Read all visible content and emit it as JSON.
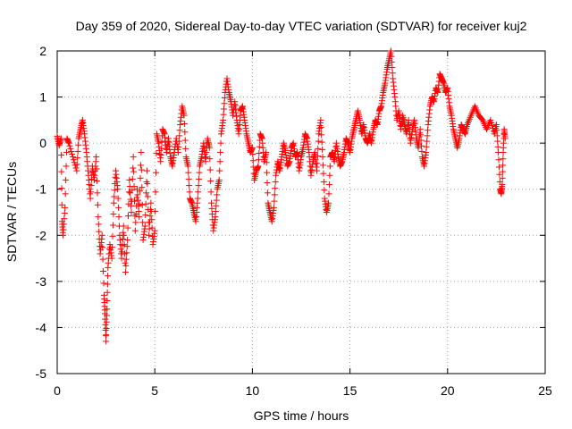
{
  "chart_data": {
    "type": "scatter",
    "title": "Day 359 of 2020, Sidereal Day-to-day VTEC variation (SDTVAR) for receiver kuj2",
    "xlabel": "GPS time / hours",
    "ylabel": "SDTVAR / TECUs",
    "xlim": [
      0,
      25
    ],
    "ylim": [
      -5,
      2
    ],
    "xticks": [
      0,
      5,
      10,
      15,
      20,
      25
    ],
    "yticks": [
      -5,
      -4,
      -3,
      -2,
      -1,
      0,
      1,
      2
    ],
    "grid": true,
    "marker": "+",
    "color": "#ff0000",
    "series": [
      {
        "name": "kuj2",
        "points": [
          [
            0.0,
            0.15
          ],
          [
            0.1,
            -0.05
          ],
          [
            0.2,
            0.1
          ],
          [
            0.25,
            -1.7
          ],
          [
            0.3,
            -2.0
          ],
          [
            0.4,
            -1.4
          ],
          [
            0.5,
            0.1
          ],
          [
            0.6,
            0.0
          ],
          [
            0.8,
            -0.3
          ],
          [
            1.0,
            -0.6
          ],
          [
            1.1,
            0.1
          ],
          [
            1.2,
            0.3
          ],
          [
            1.3,
            0.5
          ],
          [
            1.4,
            0.2
          ],
          [
            1.5,
            -0.2
          ],
          [
            1.6,
            -0.7
          ],
          [
            1.7,
            -1.2
          ],
          [
            1.8,
            -0.5
          ],
          [
            1.9,
            -0.8
          ],
          [
            2.0,
            -0.3
          ],
          [
            2.1,
            -1.6
          ],
          [
            2.2,
            -2.4
          ],
          [
            2.3,
            -2.0
          ],
          [
            2.4,
            -3.3
          ],
          [
            2.45,
            -3.7
          ],
          [
            2.5,
            -4.3
          ],
          [
            2.55,
            -3.6
          ],
          [
            2.6,
            -2.7
          ],
          [
            2.7,
            -2.2
          ],
          [
            2.8,
            -2.5
          ],
          [
            2.9,
            -1.3
          ],
          [
            3.0,
            -0.6
          ],
          [
            3.1,
            -1.0
          ],
          [
            3.2,
            -2.0
          ],
          [
            3.3,
            -2.5
          ],
          [
            3.4,
            -1.8
          ],
          [
            3.5,
            -2.8
          ],
          [
            3.6,
            -2.1
          ],
          [
            3.7,
            -0.8
          ],
          [
            3.8,
            -1.5
          ],
          [
            3.9,
            -0.3
          ],
          [
            4.0,
            -1.9
          ],
          [
            4.1,
            -1.0
          ],
          [
            4.2,
            -1.6
          ],
          [
            4.3,
            -0.2
          ],
          [
            4.4,
            -2.1
          ],
          [
            4.5,
            -1.8
          ],
          [
            4.6,
            -0.6
          ],
          [
            4.7,
            -2.0
          ],
          [
            4.8,
            -1.3
          ],
          [
            4.9,
            -2.2
          ],
          [
            5.0,
            -1.9
          ],
          [
            5.1,
            0.2
          ],
          [
            5.2,
            0.0
          ],
          [
            5.3,
            -0.4
          ],
          [
            5.4,
            0.3
          ],
          [
            5.5,
            0.2
          ],
          [
            5.6,
            -0.2
          ],
          [
            5.7,
            0.1
          ],
          [
            5.8,
            -0.3
          ],
          [
            5.9,
            -0.5
          ],
          [
            6.0,
            -0.2
          ],
          [
            6.1,
            0.1
          ],
          [
            6.2,
            -0.2
          ],
          [
            6.3,
            0.4
          ],
          [
            6.4,
            0.8
          ],
          [
            6.5,
            0.6
          ],
          [
            6.6,
            -0.3
          ],
          [
            6.7,
            -0.5
          ],
          [
            6.8,
            -1.2
          ],
          [
            6.9,
            -1.3
          ],
          [
            7.0,
            -1.5
          ],
          [
            7.1,
            -1.7
          ],
          [
            7.2,
            -1.2
          ],
          [
            7.3,
            -0.5
          ],
          [
            7.4,
            -0.3
          ],
          [
            7.5,
            0.0
          ],
          [
            7.6,
            -0.4
          ],
          [
            7.7,
            0.1
          ],
          [
            7.8,
            -0.1
          ],
          [
            7.9,
            -1.3
          ],
          [
            8.0,
            -1.9
          ],
          [
            8.1,
            -1.6
          ],
          [
            8.2,
            -1.0
          ],
          [
            8.3,
            -0.8
          ],
          [
            8.4,
            0.2
          ],
          [
            8.5,
            0.5
          ],
          [
            8.6,
            1.1
          ],
          [
            8.7,
            1.4
          ],
          [
            8.8,
            1.1
          ],
          [
            8.9,
            0.9
          ],
          [
            9.0,
            0.6
          ],
          [
            9.1,
            0.9
          ],
          [
            9.2,
            0.5
          ],
          [
            9.3,
            0.2
          ],
          [
            9.4,
            0.7
          ],
          [
            9.5,
            0.8
          ],
          [
            9.6,
            0.5
          ],
          [
            9.7,
            0.2
          ],
          [
            9.8,
            0.0
          ],
          [
            9.9,
            -0.2
          ],
          [
            10.0,
            -0.1
          ],
          [
            10.1,
            -0.8
          ],
          [
            10.2,
            -0.6
          ],
          [
            10.3,
            -0.5
          ],
          [
            10.4,
            0.2
          ],
          [
            10.5,
            0.1
          ],
          [
            10.6,
            -0.4
          ],
          [
            10.7,
            -0.2
          ],
          [
            10.8,
            -1.3
          ],
          [
            10.9,
            -1.5
          ],
          [
            11.0,
            -1.7
          ],
          [
            11.1,
            -1.4
          ],
          [
            11.2,
            -0.7
          ],
          [
            11.3,
            -0.4
          ],
          [
            11.4,
            -0.6
          ],
          [
            11.5,
            -0.3
          ],
          [
            11.6,
            0.0
          ],
          [
            11.7,
            -0.2
          ],
          [
            11.8,
            -0.5
          ],
          [
            11.9,
            -0.4
          ],
          [
            12.0,
            -0.1
          ],
          [
            12.1,
            0.0
          ],
          [
            12.2,
            -0.3
          ],
          [
            12.3,
            -0.2
          ],
          [
            12.4,
            -0.6
          ],
          [
            12.5,
            -0.3
          ],
          [
            12.6,
            -0.1
          ],
          [
            12.7,
            0.2
          ],
          [
            12.8,
            0.1
          ],
          [
            12.9,
            -0.2
          ],
          [
            13.0,
            -0.7
          ],
          [
            13.1,
            -0.4
          ],
          [
            13.2,
            -0.2
          ],
          [
            13.3,
            -0.6
          ],
          [
            13.4,
            0.2
          ],
          [
            13.5,
            0.5
          ],
          [
            13.6,
            -0.3
          ],
          [
            13.7,
            -1.2
          ],
          [
            13.8,
            -1.5
          ],
          [
            13.9,
            -1.3
          ],
          [
            14.0,
            -0.3
          ],
          [
            14.1,
            -0.2
          ],
          [
            14.2,
            -0.4
          ],
          [
            14.3,
            0.0
          ],
          [
            14.4,
            -0.3
          ],
          [
            14.5,
            -0.5
          ],
          [
            14.6,
            -0.4
          ],
          [
            14.7,
            -0.2
          ],
          [
            14.8,
            0.1
          ],
          [
            14.9,
            0.0
          ],
          [
            15.0,
            -0.2
          ],
          [
            15.1,
            0.1
          ],
          [
            15.2,
            0.3
          ],
          [
            15.3,
            0.5
          ],
          [
            15.4,
            0.7
          ],
          [
            15.5,
            0.5
          ],
          [
            15.6,
            0.2
          ],
          [
            15.7,
            0.4
          ],
          [
            15.8,
            0.1
          ],
          [
            15.9,
            0.0
          ],
          [
            16.0,
            0.2
          ],
          [
            16.1,
            0.0
          ],
          [
            16.2,
            0.3
          ],
          [
            16.3,
            0.5
          ],
          [
            16.4,
            0.4
          ],
          [
            16.5,
            0.7
          ],
          [
            16.6,
            0.8
          ],
          [
            16.7,
            1.1
          ],
          [
            16.8,
            1.3
          ],
          [
            16.9,
            1.6
          ],
          [
            17.0,
            1.8
          ],
          [
            17.1,
            2.0
          ],
          [
            17.2,
            1.4
          ],
          [
            17.3,
            1.0
          ],
          [
            17.4,
            0.5
          ],
          [
            17.5,
            0.7
          ],
          [
            17.6,
            0.3
          ],
          [
            17.7,
            0.6
          ],
          [
            17.8,
            0.4
          ],
          [
            17.9,
            0.2
          ],
          [
            18.0,
            0.5
          ],
          [
            18.1,
            0.0
          ],
          [
            18.2,
            0.3
          ],
          [
            18.3,
            0.5
          ],
          [
            18.4,
            0.1
          ],
          [
            18.5,
            -0.1
          ],
          [
            18.6,
            0.3
          ],
          [
            18.7,
            -0.3
          ],
          [
            18.8,
            -0.5
          ],
          [
            18.9,
            -0.2
          ],
          [
            19.0,
            0.4
          ],
          [
            19.1,
            0.8
          ],
          [
            19.2,
            1.0
          ],
          [
            19.3,
            0.9
          ],
          [
            19.4,
            1.2
          ],
          [
            19.5,
            1.1
          ],
          [
            19.6,
            1.5
          ],
          [
            19.7,
            1.4
          ],
          [
            19.8,
            1.3
          ],
          [
            19.9,
            1.1
          ],
          [
            20.0,
            1.2
          ],
          [
            20.1,
            0.8
          ],
          [
            20.2,
            0.6
          ],
          [
            20.3,
            0.3
          ],
          [
            20.4,
            0.1
          ],
          [
            20.5,
            -0.1
          ],
          [
            20.6,
            0.1
          ],
          [
            20.7,
            0.4
          ],
          [
            20.8,
            0.3
          ],
          [
            20.9,
            0.2
          ],
          [
            21.0,
            0.4
          ],
          [
            21.2,
            0.6
          ],
          [
            21.4,
            0.8
          ],
          [
            21.6,
            0.6
          ],
          [
            21.8,
            0.5
          ],
          [
            22.0,
            0.3
          ],
          [
            22.2,
            0.5
          ],
          [
            22.4,
            0.2
          ],
          [
            22.5,
            0.4
          ],
          [
            22.6,
            -0.2
          ],
          [
            22.7,
            -1.0
          ],
          [
            22.75,
            -1.1
          ],
          [
            22.8,
            -0.9
          ],
          [
            22.85,
            -0.2
          ],
          [
            22.9,
            0.3
          ],
          [
            22.95,
            0.1
          ]
        ]
      }
    ]
  }
}
